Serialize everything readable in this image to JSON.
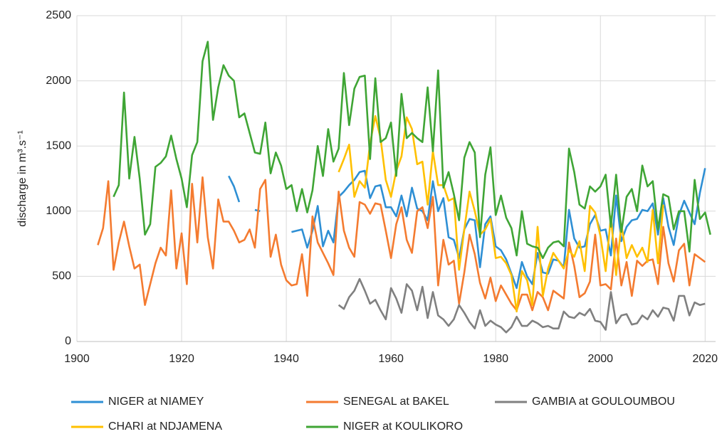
{
  "chart_data": {
    "type": "line",
    "y_label": "discharge in m³.s⁻¹",
    "x": [
      1904,
      1905,
      1906,
      1907,
      1908,
      1909,
      1910,
      1911,
      1912,
      1913,
      1914,
      1915,
      1916,
      1917,
      1918,
      1919,
      1920,
      1921,
      1922,
      1923,
      1924,
      1925,
      1926,
      1927,
      1928,
      1929,
      1930,
      1931,
      1932,
      1933,
      1934,
      1935,
      1936,
      1937,
      1938,
      1939,
      1940,
      1941,
      1942,
      1943,
      1944,
      1945,
      1946,
      1947,
      1948,
      1949,
      1950,
      1951,
      1952,
      1953,
      1954,
      1955,
      1956,
      1957,
      1958,
      1959,
      1960,
      1961,
      1962,
      1963,
      1964,
      1965,
      1966,
      1967,
      1968,
      1969,
      1970,
      1971,
      1972,
      1973,
      1974,
      1975,
      1976,
      1977,
      1978,
      1979,
      1980,
      1981,
      1982,
      1983,
      1984,
      1985,
      1986,
      1987,
      1988,
      1989,
      1990,
      1991,
      1992,
      1993,
      1994,
      1995,
      1996,
      1997,
      1998,
      1999,
      2000,
      2001,
      2002,
      2003,
      2004,
      2005,
      2006,
      2007,
      2008,
      2009,
      2010,
      2011,
      2012,
      2013,
      2014,
      2015,
      2016,
      2017,
      2018,
      2019,
      2020,
      2021
    ],
    "series": [
      {
        "name": "NIGER at NIAMEY",
        "color": "#2e8fd4",
        "values": [
          null,
          null,
          null,
          null,
          null,
          null,
          null,
          null,
          null,
          null,
          null,
          null,
          null,
          null,
          null,
          null,
          null,
          null,
          null,
          null,
          null,
          null,
          null,
          null,
          null,
          1270,
          1190,
          1070,
          null,
          null,
          1010,
          1000,
          null,
          null,
          null,
          null,
          null,
          840,
          850,
          860,
          720,
          850,
          1040,
          730,
          850,
          760,
          1110,
          1150,
          1200,
          1240,
          1300,
          1310,
          1100,
          1190,
          1200,
          1030,
          1030,
          960,
          1120,
          960,
          1180,
          1020,
          1000,
          930,
          1230,
          1000,
          1100,
          800,
          780,
          640,
          860,
          940,
          930,
          570,
          900,
          960,
          730,
          700,
          630,
          520,
          410,
          610,
          500,
          440,
          680,
          530,
          520,
          630,
          620,
          570,
          1010,
          790,
          720,
          730,
          900,
          970,
          850,
          860,
          660,
          1120,
          770,
          880,
          930,
          940,
          1010,
          1000,
          1060,
          820,
          1100,
          880,
          740,
          970,
          1080,
          990,
          900,
          1140,
          1330,
          null
        ]
      },
      {
        "name": "SENEGAL at BAKEL",
        "color": "#f47b30",
        "values": [
          740,
          870,
          1230,
          550,
          760,
          920,
          730,
          560,
          590,
          280,
          440,
          600,
          720,
          660,
          1160,
          560,
          830,
          440,
          1210,
          760,
          1260,
          800,
          560,
          1090,
          920,
          920,
          850,
          760,
          780,
          860,
          720,
          1170,
          1240,
          650,
          820,
          590,
          470,
          430,
          440,
          670,
          350,
          960,
          760,
          680,
          600,
          510,
          1150,
          850,
          720,
          650,
          1070,
          1050,
          980,
          1060,
          1050,
          850,
          640,
          900,
          1030,
          780,
          680,
          1000,
          1030,
          870,
          1110,
          430,
          780,
          590,
          620,
          290,
          530,
          820,
          670,
          450,
          330,
          490,
          310,
          430,
          360,
          290,
          240,
          360,
          360,
          240,
          380,
          340,
          240,
          390,
          360,
          330,
          760,
          580,
          340,
          370,
          460,
          820,
          430,
          440,
          400,
          790,
          430,
          610,
          350,
          620,
          580,
          620,
          630,
          440,
          880,
          600,
          460,
          700,
          750,
          430,
          670,
          640,
          610,
          null
        ]
      },
      {
        "name": "GAMBIA at GOULOUMBOU",
        "color": "#808080",
        "values": [
          null,
          null,
          null,
          null,
          null,
          null,
          null,
          null,
          null,
          null,
          null,
          null,
          null,
          null,
          null,
          null,
          null,
          null,
          null,
          null,
          null,
          null,
          null,
          null,
          null,
          null,
          null,
          null,
          null,
          null,
          null,
          null,
          null,
          null,
          null,
          null,
          null,
          null,
          null,
          null,
          null,
          null,
          null,
          null,
          null,
          null,
          280,
          250,
          340,
          390,
          480,
          390,
          290,
          320,
          240,
          170,
          410,
          330,
          220,
          440,
          390,
          240,
          420,
          180,
          380,
          200,
          170,
          120,
          170,
          280,
          220,
          150,
          100,
          240,
          120,
          160,
          130,
          110,
          70,
          110,
          190,
          120,
          120,
          160,
          140,
          110,
          120,
          100,
          100,
          230,
          190,
          180,
          220,
          200,
          250,
          160,
          150,
          90,
          380,
          140,
          200,
          210,
          130,
          140,
          200,
          170,
          240,
          190,
          260,
          250,
          160,
          350,
          350,
          200,
          300,
          280,
          290,
          null
        ]
      },
      {
        "name": "CHARI at NDJAMENA",
        "color": "#ffc000",
        "values": [
          null,
          null,
          null,
          null,
          null,
          null,
          null,
          null,
          null,
          null,
          null,
          null,
          null,
          null,
          null,
          null,
          null,
          null,
          null,
          null,
          null,
          null,
          null,
          null,
          null,
          null,
          null,
          null,
          null,
          null,
          null,
          null,
          null,
          null,
          null,
          null,
          null,
          null,
          null,
          null,
          null,
          null,
          null,
          null,
          null,
          null,
          1300,
          1400,
          1510,
          1110,
          1230,
          1180,
          1520,
          1730,
          1560,
          1240,
          1110,
          1310,
          1420,
          1720,
          1630,
          1360,
          1380,
          1050,
          1460,
          1200,
          1200,
          1080,
          1100,
          550,
          860,
          1150,
          1000,
          820,
          860,
          940,
          640,
          650,
          600,
          510,
          230,
          540,
          470,
          280,
          880,
          350,
          560,
          680,
          620,
          560,
          700,
          650,
          770,
          540,
          1040,
          990,
          810,
          540,
          960,
          510,
          900,
          640,
          740,
          650,
          720,
          610,
          1010,
          600,
          1050,
          null,
          null,
          null,
          null,
          null,
          null,
          null,
          null,
          null
        ]
      },
      {
        "name": "NIGER at KOULIKORO",
        "color": "#3fa535",
        "values": [
          null,
          null,
          null,
          1110,
          1200,
          1910,
          1250,
          1570,
          1250,
          820,
          900,
          1340,
          1370,
          1420,
          1580,
          1400,
          1250,
          1030,
          1430,
          1530,
          2150,
          2300,
          1700,
          1950,
          2120,
          2040,
          2000,
          1720,
          1750,
          1600,
          1450,
          1440,
          1680,
          1290,
          1450,
          1350,
          1170,
          1200,
          1000,
          1170,
          990,
          1160,
          1500,
          1270,
          1630,
          1380,
          1480,
          2060,
          1660,
          1940,
          2030,
          2040,
          1400,
          2020,
          1530,
          1560,
          1680,
          1270,
          1900,
          1560,
          1600,
          1560,
          1530,
          1950,
          1460,
          2080,
          1180,
          1300,
          1130,
          930,
          1410,
          1530,
          1450,
          800,
          1280,
          1490,
          970,
          1120,
          950,
          870,
          660,
          1000,
          750,
          730,
          720,
          640,
          720,
          760,
          770,
          730,
          1480,
          1300,
          1050,
          1020,
          1190,
          1150,
          1190,
          1280,
          880,
          1280,
          840,
          1110,
          1170,
          1000,
          1350,
          1190,
          1230,
          860,
          1130,
          1110,
          860,
          1000,
          1000,
          690,
          1240,
          940,
          990,
          820
        ]
      }
    ],
    "xlim": [
      1900,
      2022
    ],
    "ylim": [
      0,
      2500
    ],
    "xticks": [
      1900,
      1920,
      1940,
      1960,
      1980,
      2000,
      2020
    ],
    "yticks": [
      0,
      500,
      1000,
      1500,
      2000,
      2500
    ],
    "grid": true
  }
}
